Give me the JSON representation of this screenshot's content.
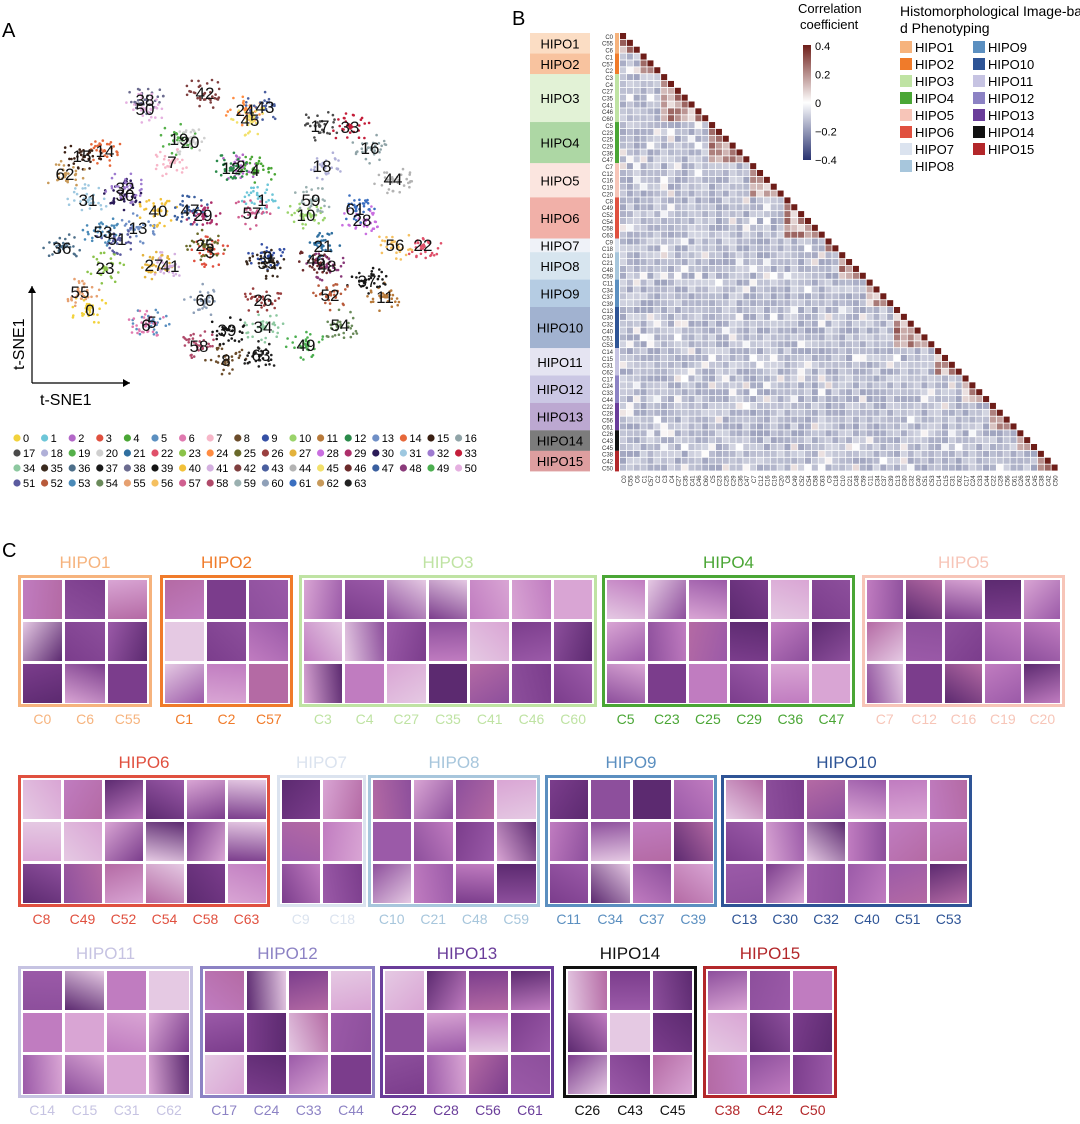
{
  "panels": {
    "a": "A",
    "b": "B",
    "c": "C"
  },
  "tsne": {
    "xlabel": "t-SNE1",
    "ylabel": "t-SNE1",
    "point_labels": [
      "0",
      "55",
      "36",
      "23",
      "62",
      "15",
      "14",
      "31",
      "32",
      "30",
      "53",
      "51",
      "13",
      "40",
      "38",
      "50",
      "42",
      "19",
      "20",
      "7",
      "47",
      "29",
      "12",
      "2",
      "4",
      "1",
      "24",
      "43",
      "45",
      "17",
      "33",
      "16",
      "18",
      "44",
      "59",
      "10",
      "61",
      "28",
      "56",
      "22",
      "21",
      "48",
      "46",
      "37",
      "11",
      "52",
      "54",
      "27",
      "41",
      "25",
      "3",
      "9",
      "35",
      "5",
      "6",
      "60",
      "26",
      "34",
      "39",
      "58",
      "8",
      "63",
      "49",
      "57"
    ],
    "legend": [
      "0",
      "1",
      "2",
      "3",
      "4",
      "5",
      "6",
      "7",
      "8",
      "9",
      "10",
      "11",
      "12",
      "13",
      "14",
      "15",
      "16",
      "17",
      "18",
      "19",
      "20",
      "21",
      "22",
      "23",
      "24",
      "25",
      "26",
      "27",
      "28",
      "29",
      "30",
      "31",
      "32",
      "33",
      "34",
      "35",
      "36",
      "37",
      "38",
      "39",
      "40",
      "41",
      "42",
      "43",
      "44",
      "45",
      "46",
      "47",
      "48",
      "49",
      "50",
      "51",
      "52",
      "53",
      "54",
      "55",
      "56",
      "57",
      "58",
      "59",
      "60",
      "61",
      "62",
      "63"
    ]
  },
  "heatmap": {
    "colorbar_title": "Correlation coefficient",
    "colorbar_ticks": [
      "0.4",
      "0.2",
      "0",
      "−0.2",
      "−0.4"
    ],
    "legend_title": "Histomorphological Image-based Phenotyping",
    "groups": [
      {
        "name": "HIPO1",
        "color": "#f6b37d",
        "clusters": [
          "C0",
          "C55",
          "C6"
        ]
      },
      {
        "name": "HIPO2",
        "color": "#f07b2a",
        "clusters": [
          "C1",
          "C57",
          "C2"
        ]
      },
      {
        "name": "HIPO3",
        "color": "#bfe3a3",
        "clusters": [
          "C3",
          "C4",
          "C27",
          "C35",
          "C41",
          "C46",
          "C60"
        ]
      },
      {
        "name": "HIPO4",
        "color": "#4aa635",
        "clusters": [
          "C5",
          "C23",
          "C25",
          "C29",
          "C36",
          "C47"
        ]
      },
      {
        "name": "HIPO5",
        "color": "#f7c5b8",
        "clusters": [
          "C7",
          "C12",
          "C16",
          "C19",
          "C20"
        ]
      },
      {
        "name": "HIPO6",
        "color": "#e0503f",
        "clusters": [
          "C8",
          "C49",
          "C52",
          "C54",
          "C58",
          "C63"
        ]
      },
      {
        "name": "HIPO7",
        "color": "#dbe3ef",
        "clusters": [
          "C9",
          "C18"
        ]
      },
      {
        "name": "HIPO8",
        "color": "#a7c6dc",
        "clusters": [
          "C10",
          "C21",
          "C48",
          "C59"
        ]
      },
      {
        "name": "HIPO9",
        "color": "#5b8fc0",
        "clusters": [
          "C11",
          "C34",
          "C37",
          "C39"
        ]
      },
      {
        "name": "HIPO10",
        "color": "#2e5496",
        "clusters": [
          "C13",
          "C30",
          "C32",
          "C40",
          "C51",
          "C53"
        ]
      },
      {
        "name": "HIPO11",
        "color": "#c6c3e2",
        "clusters": [
          "C14",
          "C15",
          "C31",
          "C62"
        ]
      },
      {
        "name": "HIPO12",
        "color": "#8c82c4",
        "clusters": [
          "C17",
          "C24",
          "C33",
          "C44"
        ]
      },
      {
        "name": "HIPO13",
        "color": "#6a3d9a",
        "clusters": [
          "C22",
          "C28",
          "C56",
          "C61"
        ]
      },
      {
        "name": "HIPO14",
        "color": "#111111",
        "clusters": [
          "C26",
          "C43",
          "C45"
        ]
      },
      {
        "name": "HIPO15",
        "color": "#b3272a",
        "clusters": [
          "C38",
          "C42",
          "C50"
        ]
      }
    ]
  },
  "gallery": [
    {
      "name": "HIPO1",
      "clusters": [
        "C0",
        "C6",
        "C55"
      ]
    },
    {
      "name": "HIPO2",
      "clusters": [
        "C1",
        "C2",
        "C57"
      ]
    },
    {
      "name": "HIPO3",
      "clusters": [
        "C3",
        "C4",
        "C27",
        "C35",
        "C41",
        "C46",
        "C60"
      ]
    },
    {
      "name": "HIPO4",
      "clusters": [
        "C5",
        "C23",
        "C25",
        "C29",
        "C36",
        "C47"
      ]
    },
    {
      "name": "HIPO5",
      "clusters": [
        "C7",
        "C12",
        "C16",
        "C19",
        "C20"
      ]
    },
    {
      "name": "HIPO6",
      "clusters": [
        "C8",
        "C49",
        "C52",
        "C54",
        "C58",
        "C63"
      ]
    },
    {
      "name": "HIPO7",
      "clusters": [
        "C9",
        "C18"
      ]
    },
    {
      "name": "HIPO8",
      "clusters": [
        "C10",
        "C21",
        "C48",
        "C59"
      ]
    },
    {
      "name": "HIPO9",
      "clusters": [
        "C11",
        "C34",
        "C37",
        "C39"
      ]
    },
    {
      "name": "HIPO10",
      "clusters": [
        "C13",
        "C30",
        "C32",
        "C40",
        "C51",
        "C53"
      ]
    },
    {
      "name": "HIPO11",
      "clusters": [
        "C14",
        "C15",
        "C31",
        "C62"
      ]
    },
    {
      "name": "HIPO12",
      "clusters": [
        "C17",
        "C24",
        "C33",
        "C44"
      ]
    },
    {
      "name": "HIPO13",
      "clusters": [
        "C22",
        "C28",
        "C56",
        "C61"
      ]
    },
    {
      "name": "HIPO14",
      "clusters": [
        "C26",
        "C43",
        "C45"
      ]
    },
    {
      "name": "HIPO15",
      "clusters": [
        "C38",
        "C42",
        "C50"
      ]
    }
  ]
}
